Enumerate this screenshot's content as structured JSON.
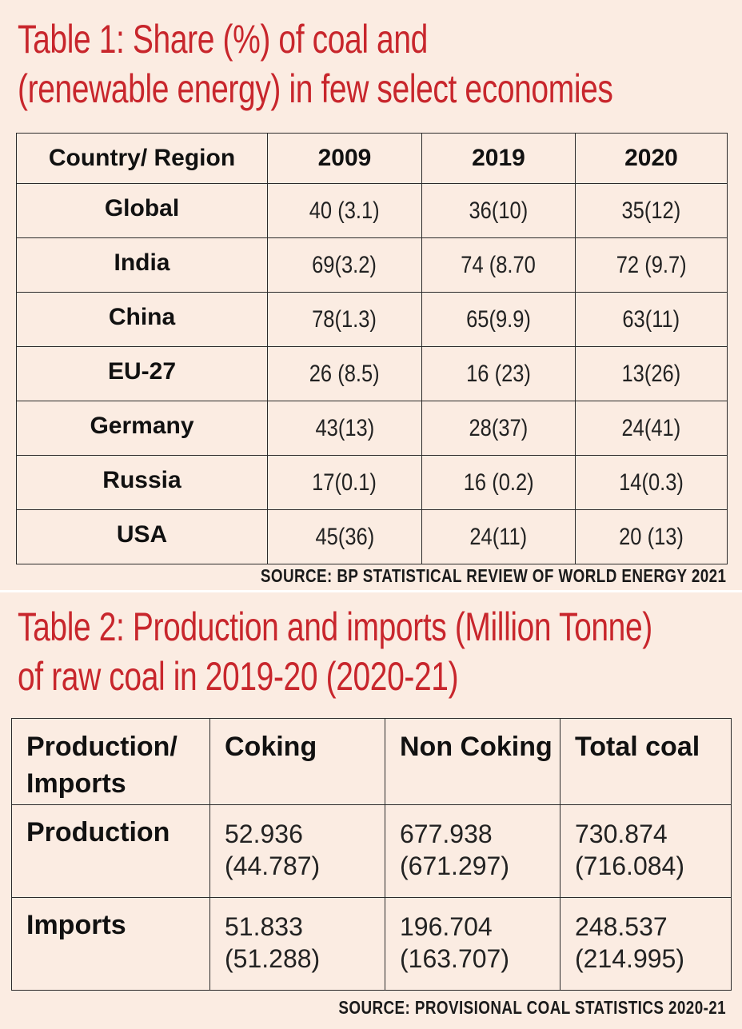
{
  "table1": {
    "title_line1": "Table 1: Share (%) of coal and",
    "title_line2": "(renewable energy) in few select economies",
    "headers": [
      "Country/ Region",
      "2009",
      "2019",
      "2020"
    ],
    "rows": [
      {
        "country": "Global",
        "values": [
          "40 (3.1)",
          "36(10)",
          "35(12)"
        ]
      },
      {
        "country": "India",
        "values": [
          "69(3.2)",
          "74 (8.70",
          "72 (9.7)"
        ]
      },
      {
        "country": "China",
        "values": [
          "78(1.3)",
          "65(9.9)",
          "63(11)"
        ]
      },
      {
        "country": "EU-27",
        "values": [
          "26 (8.5)",
          "16 (23)",
          "13(26)"
        ]
      },
      {
        "country": "Germany",
        "values": [
          "43(13)",
          "28(37)",
          "24(41)"
        ]
      },
      {
        "country": "Russia",
        "values": [
          "17(0.1)",
          "16 (0.2)",
          "14(0.3)"
        ]
      },
      {
        "country": "USA",
        "values": [
          "45(36)",
          "24(11)",
          "20 (13)"
        ]
      }
    ],
    "source": "SOURCE: BP STATISTICAL REVIEW OF WORLD ENERGY 2021"
  },
  "table2": {
    "title_line1": "Table 2: Production and imports (Million Tonne)",
    "title_line2": "of raw coal in 2019-20 (2020-21)",
    "headers": [
      {
        "line1": "Production/",
        "line2": "Imports"
      },
      {
        "line1": "Coking",
        "line2": ""
      },
      {
        "line1": "Non Coking",
        "line2": ""
      },
      {
        "line1": "Total coal",
        "line2": ""
      }
    ],
    "rows": [
      {
        "label": "Production",
        "cells": [
          {
            "line1": "52.936",
            "line2": "(44.787)"
          },
          {
            "line1": "677.938",
            "line2": "(671.297)"
          },
          {
            "line1": "730.874",
            "line2": "(716.084)"
          }
        ]
      },
      {
        "label": "Imports",
        "cells": [
          {
            "line1": "51.833",
            "line2": "(51.288)"
          },
          {
            "line1": "196.704",
            "line2": "(163.707)"
          },
          {
            "line1": "248.537",
            "line2": "(214.995)"
          }
        ]
      }
    ],
    "source": "SOURCE: PROVISIONAL COAL STATISTICS 2020-21"
  },
  "colors": {
    "title": "#c8262c",
    "background": "#fbece2",
    "border": "#2b2b2b"
  }
}
